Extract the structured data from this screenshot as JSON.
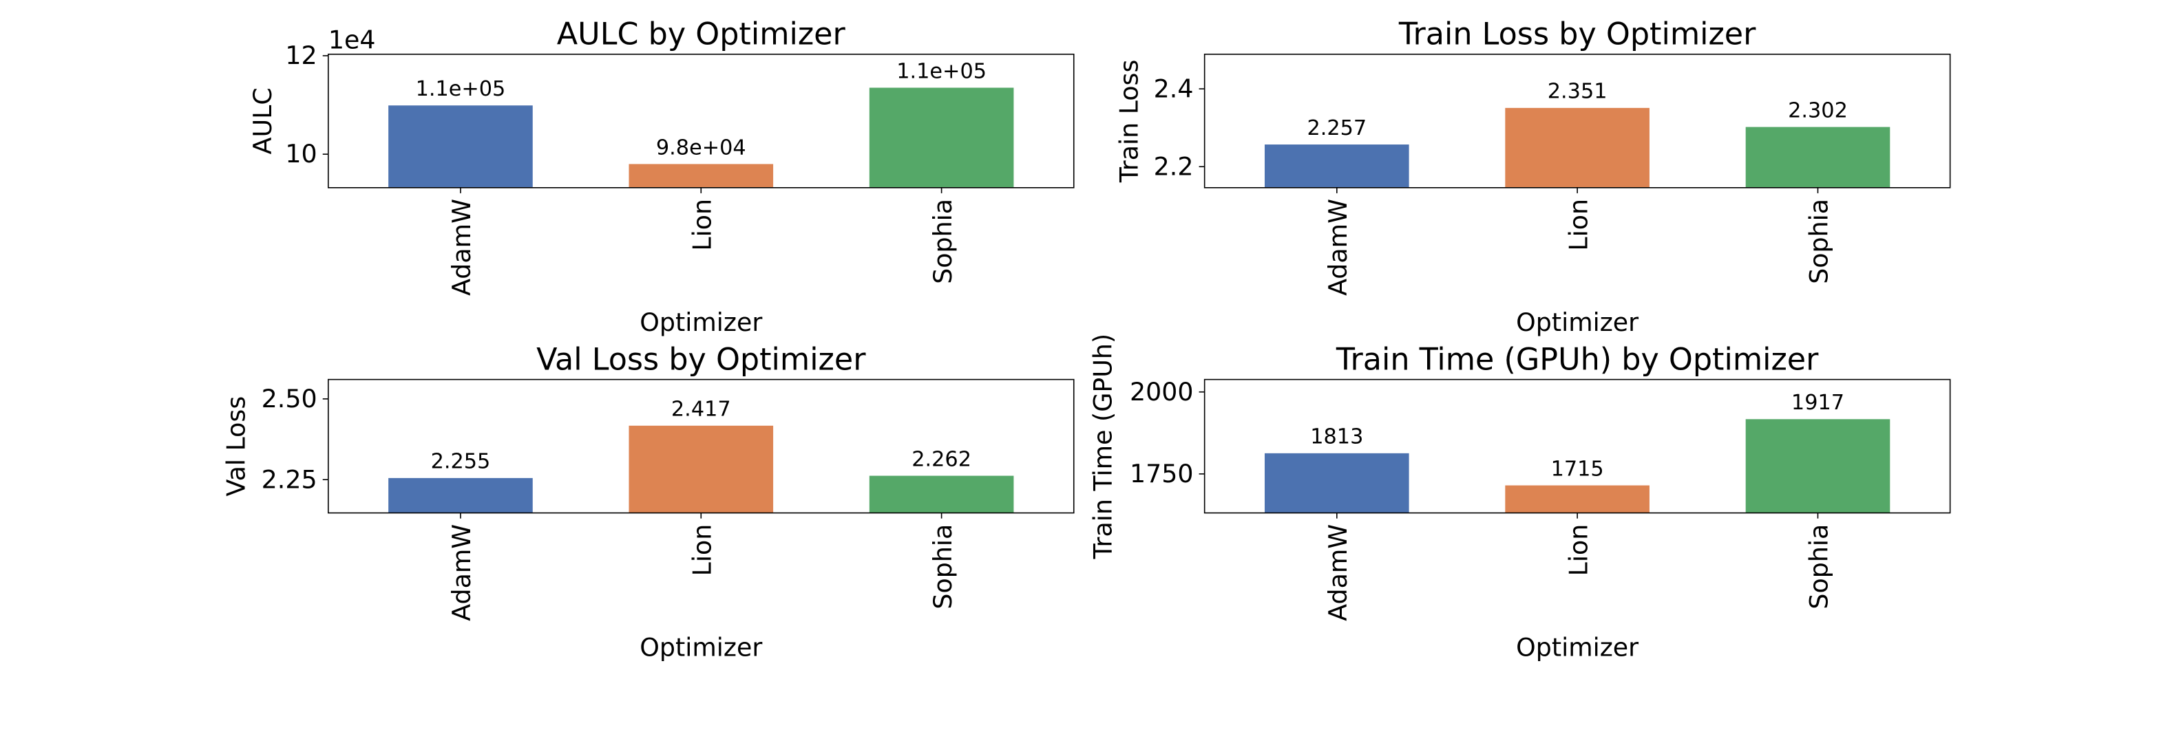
{
  "chart_data": [
    {
      "type": "bar",
      "title": "AULC by Optimizer",
      "xlabel": "Optimizer",
      "ylabel": "AULC",
      "offset_text": "1e4",
      "categories": [
        "AdamW",
        "Lion",
        "Sophia"
      ],
      "values": [
        109900,
        98000,
        113500
      ],
      "value_labels": [
        "1.1e+05",
        "9.8e+04",
        "1.1e+05"
      ],
      "colors": [
        "#4c72b0",
        "#dd8452",
        "#55a868"
      ],
      "ylim": [
        93200,
        120300
      ],
      "yticks": [
        {
          "value": 100000,
          "label": "10"
        },
        {
          "value": 120000,
          "label": "12"
        }
      ]
    },
    {
      "type": "bar",
      "title": "Train Loss by Optimizer",
      "xlabel": "Optimizer",
      "ylabel": "Train Loss",
      "categories": [
        "AdamW",
        "Lion",
        "Sophia"
      ],
      "values": [
        2.257,
        2.351,
        2.302
      ],
      "colors": [
        "#4c72b0",
        "#dd8452",
        "#55a868"
      ],
      "ylim": [
        2.146,
        2.489
      ],
      "yticks": [
        2.2,
        2.4
      ]
    },
    {
      "type": "bar",
      "title": "Val Loss by Optimizer",
      "xlabel": "Optimizer",
      "ylabel": "Val Loss",
      "categories": [
        "AdamW",
        "Lion",
        "Sophia"
      ],
      "values": [
        2.255,
        2.417,
        2.262
      ],
      "colors": [
        "#4c72b0",
        "#dd8452",
        "#55a868"
      ],
      "ylim": [
        2.147,
        2.56
      ],
      "yticks": [
        {
          "value": 2.25,
          "label": "2.25"
        },
        {
          "value": 2.5,
          "label": "2.50"
        }
      ]
    },
    {
      "type": "bar",
      "title": "Train Time (GPUh) by Optimizer",
      "xlabel": "Optimizer",
      "ylabel": "Train Time (GPUh)",
      "categories": [
        "AdamW",
        "Lion",
        "Sophia"
      ],
      "values": [
        1813,
        1715,
        1917
      ],
      "colors": [
        "#4c72b0",
        "#dd8452",
        "#55a868"
      ],
      "ylim": [
        1631,
        2038
      ],
      "yticks": [
        1750,
        2000
      ]
    }
  ]
}
